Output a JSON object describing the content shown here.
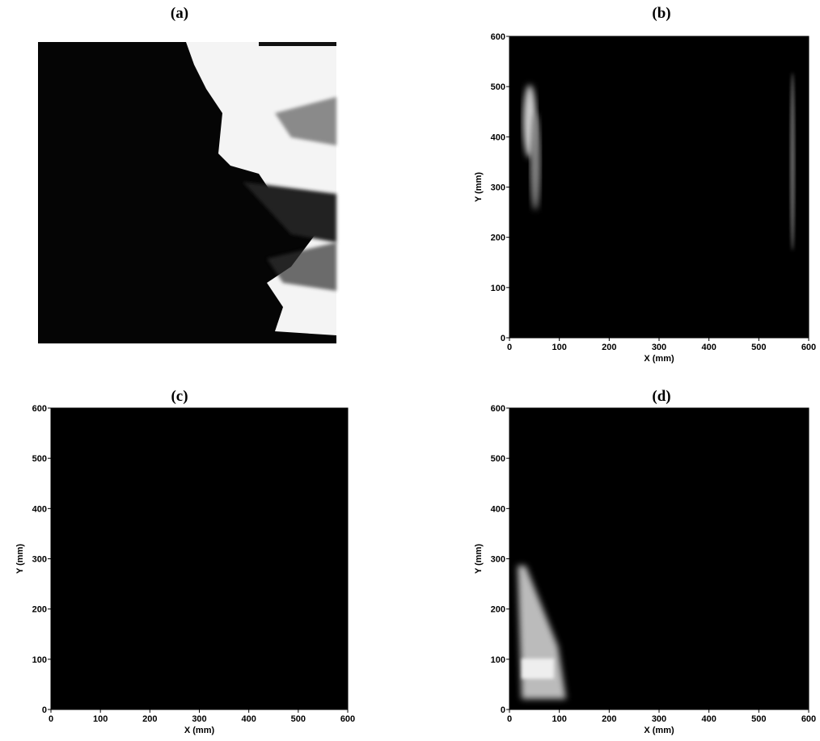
{
  "chart_data": [
    {
      "type": "image",
      "title": "(a)"
    },
    {
      "type": "heatmap",
      "title": "(b)",
      "xlabel": "X (mm)",
      "ylabel": "Y (mm)",
      "xlim": [
        0,
        600
      ],
      "ylim": [
        0,
        600
      ],
      "xticks": [
        0,
        100,
        200,
        300,
        400,
        500,
        600
      ],
      "yticks": [
        0,
        100,
        200,
        300,
        400,
        500,
        600
      ]
    },
    {
      "type": "heatmap",
      "title": "(c)",
      "xlabel": "X (mm)",
      "ylabel": "Y (mm)",
      "xlim": [
        0,
        600
      ],
      "ylim": [
        0,
        600
      ],
      "xticks": [
        0,
        100,
        200,
        300,
        400,
        500,
        600
      ],
      "yticks": [
        0,
        100,
        200,
        300,
        400,
        500,
        600
      ]
    },
    {
      "type": "heatmap",
      "title": "(d)",
      "xlabel": "X (mm)",
      "ylabel": "Y (mm)",
      "xlim": [
        0,
        600
      ],
      "ylim": [
        0,
        600
      ],
      "xticks": [
        0,
        100,
        200,
        300,
        400,
        500,
        600
      ],
      "yticks": [
        0,
        100,
        200,
        300,
        400,
        500,
        600
      ]
    }
  ]
}
